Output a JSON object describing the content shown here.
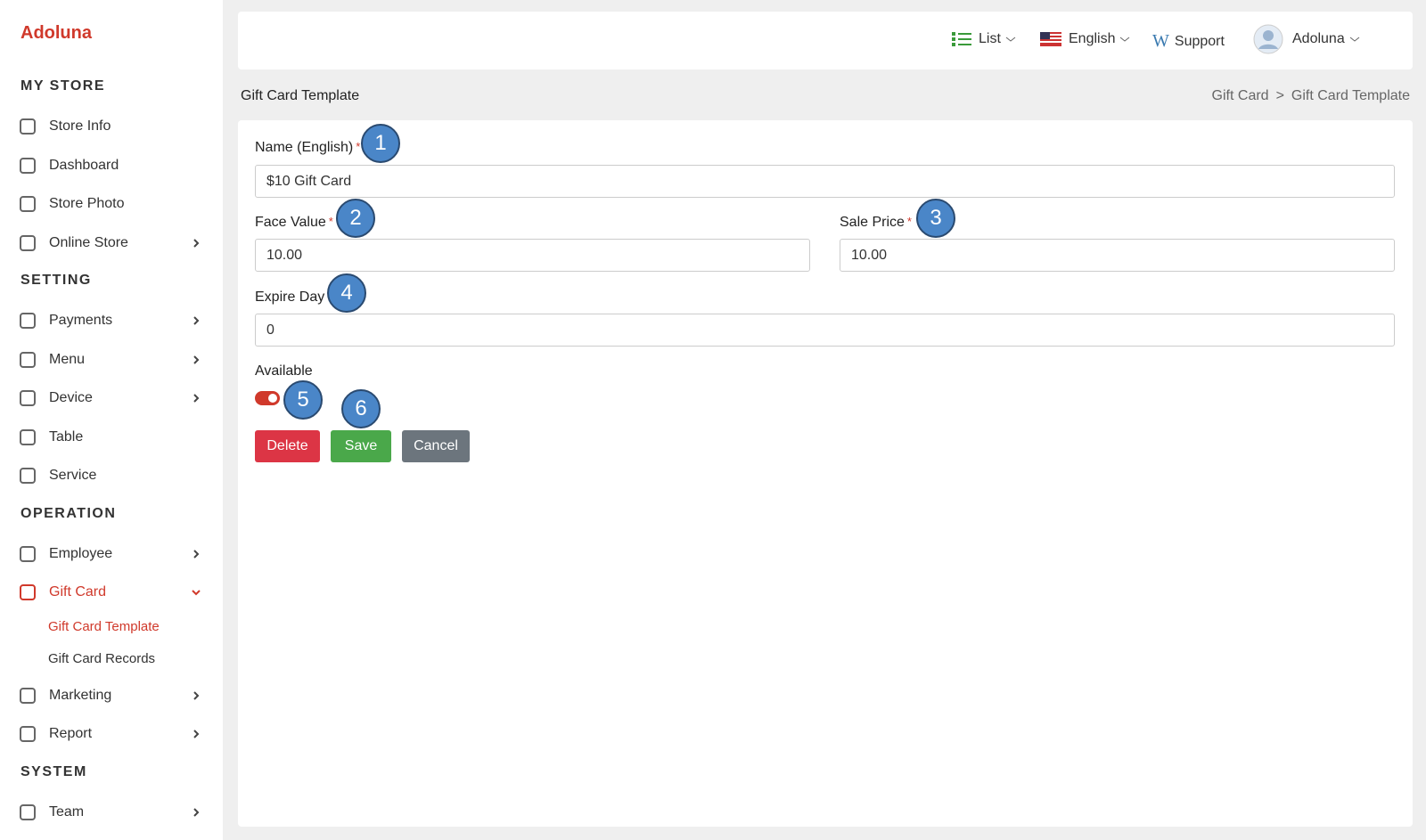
{
  "sidebar": {
    "brand": "Adoluna",
    "sections": [
      {
        "title": "MY STORE",
        "items": [
          {
            "label": "Store Info"
          },
          {
            "label": "Dashboard"
          },
          {
            "label": "Store Photo"
          },
          {
            "label": "Online Store",
            "arrow": true
          }
        ]
      },
      {
        "title": "SETTING",
        "items": [
          {
            "label": "Payments",
            "arrow": true
          },
          {
            "label": "Menu",
            "arrow": true
          },
          {
            "label": "Device",
            "arrow": true
          },
          {
            "label": "Table"
          },
          {
            "label": "Service"
          }
        ]
      },
      {
        "title": "OPERATION",
        "items": [
          {
            "label": "Employee",
            "arrow": true
          },
          {
            "label": "Gift Card",
            "active": true,
            "children": [
              "Gift Card Template",
              "Gift Card Records"
            ]
          },
          {
            "label": "Marketing",
            "arrow": true
          },
          {
            "label": "Report",
            "arrow": true
          }
        ]
      },
      {
        "title": "SYSTEM",
        "items": [
          {
            "label": "Team",
            "arrow": true
          }
        ]
      }
    ]
  },
  "topbar": {
    "list": "List",
    "language": "English",
    "support": "Support",
    "user": "Adoluna"
  },
  "page": {
    "title": "Gift Card Template",
    "breadcrumb": [
      "Gift Card",
      ">",
      "Gift Card Template"
    ]
  },
  "form": {
    "name": {
      "label": "Name (English)",
      "required": "*",
      "value": "$10 Gift Card"
    },
    "face_value": {
      "label": "Face Value",
      "required": "*",
      "value": "10.00"
    },
    "sale_price": {
      "label": "Sale Price",
      "required": "*",
      "value": "10.00"
    },
    "expire_day": {
      "label": "Expire Day",
      "value": "0"
    },
    "available": {
      "label": "Available"
    },
    "buttons": [
      "Delete",
      "Save",
      "Cancel"
    ]
  },
  "annotations": [
    1,
    2,
    3,
    4,
    5,
    6
  ]
}
